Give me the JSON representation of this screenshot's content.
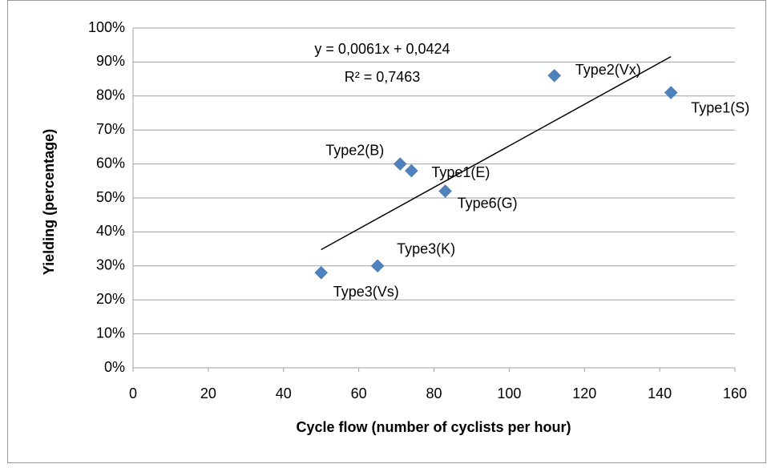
{
  "chart_data": {
    "type": "scatter",
    "x_label": "Cycle flow (number of cyclists per hour)",
    "y_label": "Yielding (percentage)",
    "trendline_equation": "y = 0,0061x + 0,0424",
    "trendline_r2": "R² = 0,7463",
    "color": "#4f81bd",
    "labels": [
      "Type3(Vs)",
      "Type3(K)",
      "Type2(B)",
      "Type1(E)",
      "Type6(G)",
      "Type2(Vx)",
      "Type1(S)"
    ],
    "x": [
      50,
      65,
      71,
      74,
      83,
      112,
      143
    ],
    "values": [
      28,
      30,
      60,
      58,
      52,
      86,
      81
    ],
    "xlim": [
      0,
      160
    ],
    "xticks": [
      0,
      20,
      40,
      60,
      80,
      100,
      120,
      140,
      160
    ],
    "ylim": [
      0,
      100
    ],
    "yticks": [
      {
        "value": 0,
        "label": "0%"
      },
      {
        "value": 10,
        "label": "10%"
      },
      {
        "value": 20,
        "label": "20%"
      },
      {
        "value": 30,
        "label": "30%"
      },
      {
        "value": 40,
        "label": "40%"
      },
      {
        "value": 50,
        "label": "50%"
      },
      {
        "value": 60,
        "label": "60%"
      },
      {
        "value": 70,
        "label": "70%"
      },
      {
        "value": 80,
        "label": "80%"
      },
      {
        "value": 90,
        "label": "90%"
      },
      {
        "value": 100,
        "label": "100%"
      }
    ],
    "grid": true,
    "trendline": true
  }
}
